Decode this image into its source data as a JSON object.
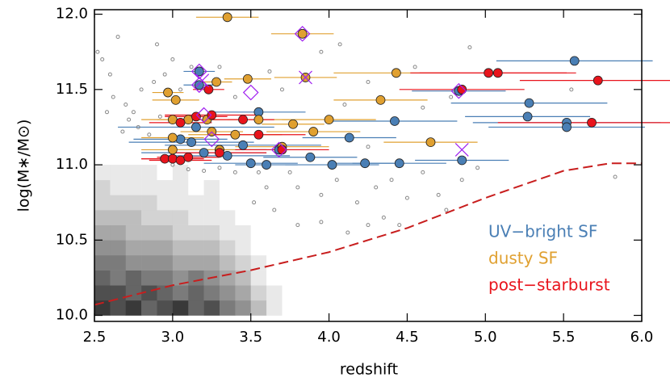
{
  "chart_data": {
    "type": "scatter",
    "xlabel": "redshift",
    "ylabel": "log(M∗/M⊙)",
    "xlim": [
      2.5,
      6.0
    ],
    "ylim": [
      9.96,
      12.03
    ],
    "xticks": [
      2.5,
      {
        "value": 3,
        "label": "3.0"
      },
      3.5,
      {
        "value": 4,
        "label": "4.0"
      },
      4.5,
      {
        "value": 5,
        "label": "5.0"
      },
      5.5,
      {
        "value": 6,
        "label": "6.0"
      }
    ],
    "yticks": [
      {
        "value": 10,
        "label": "10.0"
      },
      10.5,
      {
        "value": 11,
        "label": "11.0"
      },
      11.5,
      {
        "value": 12,
        "label": "12.0"
      }
    ],
    "legend": "lower right",
    "density": {
      "xbins": [
        2.5,
        2.6,
        2.7,
        2.8,
        2.9,
        3.0,
        3.1,
        3.2,
        3.3,
        3.4,
        3.5,
        3.6,
        3.7,
        3.8
      ],
      "ybins": [
        10.0,
        10.1,
        10.2,
        10.3,
        10.4,
        10.5,
        10.6,
        10.7,
        10.8,
        10.9,
        11.0
      ],
      "counts": [
        [
          9,
          8,
          9,
          7,
          8,
          9,
          7,
          8,
          6,
          5,
          3,
          1,
          0
        ],
        [
          8,
          8,
          7,
          8,
          7,
          6,
          7,
          6,
          5,
          4,
          2,
          1,
          0
        ],
        [
          7,
          6,
          7,
          6,
          6,
          5,
          6,
          5,
          4,
          3,
          1,
          0,
          0
        ],
        [
          6,
          6,
          5,
          5,
          5,
          4,
          4,
          4,
          3,
          2,
          1,
          0,
          0
        ],
        [
          5,
          5,
          4,
          4,
          4,
          3,
          3,
          3,
          2,
          1,
          0,
          0,
          0
        ],
        [
          4,
          4,
          3,
          3,
          3,
          2,
          2,
          2,
          1,
          1,
          0,
          0,
          0
        ],
        [
          3,
          3,
          3,
          2,
          2,
          2,
          1,
          1,
          1,
          0,
          0,
          0,
          0
        ],
        [
          2,
          2,
          2,
          2,
          1,
          1,
          1,
          1,
          0,
          0,
          0,
          0,
          0
        ],
        [
          2,
          1,
          1,
          1,
          1,
          1,
          0,
          1,
          0,
          0,
          0,
          0,
          0
        ],
        [
          1,
          1,
          1,
          1,
          0,
          1,
          0,
          0,
          0,
          0,
          0,
          0,
          0
        ]
      ]
    },
    "series": [
      {
        "marker": "dot",
        "color": "#888888",
        "x": [
          2.52,
          2.55,
          2.6,
          2.62,
          2.65,
          2.7,
          2.72,
          2.75,
          2.8,
          2.85,
          2.88,
          2.9,
          2.95,
          3.0,
          2.78,
          2.68,
          2.58,
          2.92,
          3.05,
          3.12,
          3.3,
          3.4,
          3.62,
          3.7,
          3.95,
          4.07,
          4.25,
          4.55,
          4.78,
          4.9,
          4.6,
          4.1,
          3.9,
          3.75,
          3.8,
          3.95,
          4.05,
          4.18,
          4.3,
          4.35,
          4.45,
          4.5,
          4.6,
          4.7,
          4.75,
          4.85,
          4.95,
          3.6,
          3.55,
          3.52,
          3.65,
          3.8,
          3.95,
          4.12,
          4.25,
          5.83,
          4.4,
          3.4,
          3.3,
          4.25,
          3.0,
          3.1,
          3.2,
          5.55
        ],
        "values": [
          11.75,
          11.7,
          11.6,
          11.45,
          11.85,
          11.4,
          11.3,
          11.35,
          11.5,
          11.2,
          11.55,
          11.8,
          11.6,
          11.7,
          11.25,
          11.22,
          11.35,
          11.32,
          11.5,
          11.65,
          11.65,
          11.45,
          11.62,
          11.5,
          11.75,
          11.8,
          11.55,
          11.65,
          11.45,
          11.78,
          11.38,
          11.4,
          11.05,
          10.95,
          10.85,
          10.8,
          10.9,
          10.75,
          10.85,
          10.65,
          10.6,
          10.78,
          10.95,
          10.8,
          10.7,
          10.9,
          10.98,
          10.85,
          10.95,
          10.75,
          10.7,
          10.6,
          10.62,
          10.55,
          10.6,
          10.92,
          10.9,
          10.95,
          10.98,
          11.12,
          11.0,
          10.97,
          10.96,
          11.5
        ]
      },
      {
        "name": "UV−bright SF",
        "marker": "circle",
        "color": "#4a7fb5",
        "x": [
          5.57,
          5.28,
          5.27,
          5.52,
          5.52,
          4.83,
          4.42,
          4.13,
          4.02,
          4.23,
          4.45,
          4.85,
          3.5,
          3.6,
          3.88,
          3.45,
          3.35,
          3.15,
          3.12,
          3.17,
          3.17,
          3.05,
          3.55,
          3.2,
          3.3,
          3.68
        ],
        "values": [
          11.69,
          11.41,
          11.32,
          11.28,
          11.25,
          11.49,
          11.29,
          11.18,
          11.0,
          11.01,
          11.01,
          11.03,
          11.01,
          11.0,
          11.05,
          11.13,
          11.06,
          11.25,
          11.15,
          11.53,
          11.62,
          11.17,
          11.35,
          11.08,
          11.1,
          11.1
        ],
        "xerr": [
          0.5,
          0.5,
          0.4,
          0.6,
          0.5,
          0.3,
          0.4,
          0.3,
          0.3,
          0.2,
          0.3,
          0.3,
          0.3,
          0.2,
          0.3,
          0.5,
          0.4,
          0.5,
          0.4,
          0.1,
          0.1,
          0.3,
          0.3,
          0.4,
          0.3,
          0.2
        ]
      },
      {
        "name": "dusty SF",
        "marker": "circle",
        "color": "#e0a030",
        "x": [
          3.35,
          3.83,
          3.85,
          3.48,
          2.97,
          3.02,
          3.28,
          4.43,
          4.33,
          4.0,
          3.9,
          3.77,
          3.55,
          4.65,
          3.0,
          3.0,
          3.1,
          3.22,
          3.25,
          3.3,
          3.7,
          3.4,
          3.0
        ],
        "values": [
          11.98,
          11.87,
          11.58,
          11.57,
          11.48,
          11.43,
          11.55,
          11.61,
          11.43,
          11.3,
          11.22,
          11.27,
          11.3,
          11.15,
          11.3,
          11.18,
          11.3,
          11.3,
          11.22,
          11.1,
          11.12,
          11.2,
          11.1
        ],
        "xerr": [
          0.2,
          0.2,
          0.2,
          0.15,
          0.1,
          0.15,
          0.1,
          0.4,
          0.3,
          0.3,
          0.3,
          0.2,
          0.2,
          0.3,
          0.2,
          0.2,
          0.2,
          0.2,
          0.2,
          0.2,
          0.3,
          0.3,
          0.2
        ]
      },
      {
        "name": "post−starburst",
        "marker": "circle",
        "color": "#e8141c",
        "x": [
          5.08,
          5.72,
          5.68,
          5.02,
          3.23,
          3.45,
          3.25,
          3.15,
          2.95,
          3.0,
          3.05,
          3.1,
          3.3,
          3.55,
          3.7,
          3.05,
          4.85
        ],
        "values": [
          11.61,
          11.56,
          11.28,
          11.61,
          11.5,
          11.3,
          11.33,
          11.32,
          11.04,
          11.04,
          11.03,
          11.05,
          11.08,
          11.2,
          11.1,
          11.28,
          11.5
        ],
        "xerr": [
          0.5,
          0.5,
          0.6,
          0.5,
          0.1,
          0.2,
          0.3,
          0.2,
          0.15,
          0.2,
          0.2,
          0.2,
          0.3,
          0.3,
          0.3,
          0.2,
          0.4
        ]
      },
      {
        "marker": "diamond",
        "color": "#a020f0",
        "x": [
          3.17,
          3.17,
          3.5,
          3.83,
          3.2,
          3.68,
          4.83,
          3.25
        ],
        "values": [
          11.62,
          11.53,
          11.48,
          11.87,
          11.33,
          11.1,
          11.49,
          11.17
        ]
      },
      {
        "marker": "x",
        "color": "#a020f0",
        "x": [
          3.85,
          4.85,
          3.19
        ],
        "values": [
          11.58,
          11.1,
          11.56
        ]
      },
      {
        "marker": "line",
        "linestyle": "dashed",
        "color": "#c81e1e",
        "x": [
          2.5,
          3.0,
          3.5,
          4.0,
          4.5,
          5.0,
          5.5,
          5.8,
          6.0
        ],
        "values": [
          10.07,
          10.2,
          10.3,
          10.42,
          10.58,
          10.78,
          10.96,
          11.01,
          11.01
        ]
      }
    ]
  }
}
